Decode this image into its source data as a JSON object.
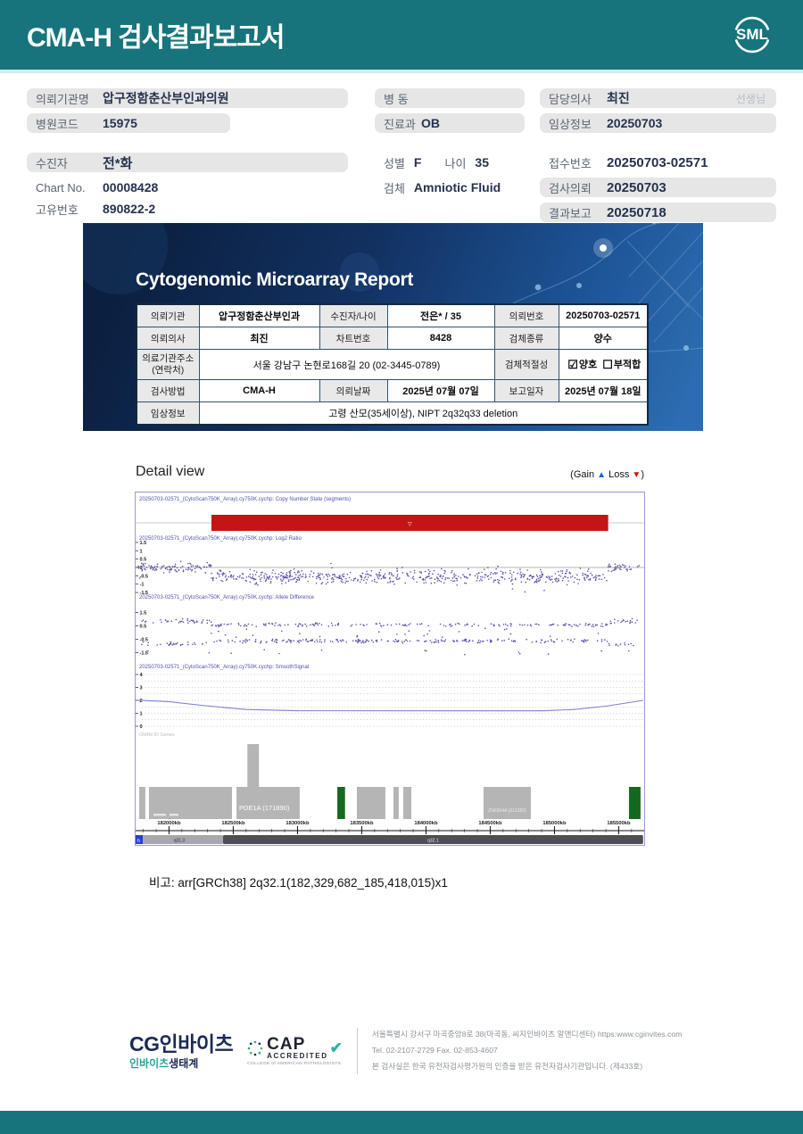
{
  "header": {
    "title": "CMA-H 검사결과보고서",
    "logo_text": "SML"
  },
  "patient": {
    "col1": [
      {
        "label": "의뢰기관명",
        "value": "압구정함춘산부인과의원"
      },
      {
        "label": "병원코드",
        "value": "15975"
      },
      {
        "label": "수진자",
        "value": "전*화"
      },
      {
        "label": "Chart No.",
        "value": "00008428"
      },
      {
        "label": "고유번호",
        "value": "890822-2"
      }
    ],
    "col2": {
      "ward_label": "병  동",
      "ward_value": "",
      "dept_label": "진료과",
      "dept_value": "OB",
      "sex_label": "성별",
      "sex_value": "F",
      "age_label": "나이",
      "age_value": "35",
      "specimen_label": "검체",
      "specimen_value": "Amniotic Fluid"
    },
    "col3": [
      {
        "label": "담당의사",
        "value": "최진",
        "suffix": "선생님"
      },
      {
        "label": "임상정보",
        "value": "20250703"
      },
      {
        "label": "접수번호",
        "value": "20250703-02571"
      },
      {
        "label": "검사의뢰",
        "value": "20250703"
      },
      {
        "label": "결과보고",
        "value": "20250718"
      }
    ]
  },
  "report_card": {
    "title": "Cytogenomic Microarray Report",
    "row1": {
      "l1": "의뢰기관",
      "v1": "압구정함춘산부인과",
      "l2": "수진자/나이",
      "v2": "전은* / 35",
      "l3": "의뢰번호",
      "v3": "20250703-02571"
    },
    "row2": {
      "l1": "의뢰의사",
      "v1": "최진",
      "l2": "차트번호",
      "v2": "8428",
      "l3": "검체종류",
      "v3": "양수"
    },
    "row3": {
      "l1a": "의료기관주소",
      "l1b": "(연락처)",
      "v1": "서울 강남구 논현로168길 20 (02-3445-0789)",
      "l3": "검체적절성",
      "checked_box": "☑",
      "good": "양호",
      "unchecked_box": "☐",
      "bad": "부적합"
    },
    "row4": {
      "l1": "검사방법",
      "v1": "CMA-H",
      "l2": "의뢰날짜",
      "v2": "2025년 07월 07일",
      "l3": "보고일자",
      "v3": "2025년 07월 18일"
    },
    "row5": {
      "l1": "임상정보",
      "v1": "고령 산모(35세이상), NIPT 2q32q33 deletion"
    }
  },
  "detail": {
    "title": "Detail view",
    "legend_open": "(Gain",
    "tri_up": "▲",
    "legend_loss": "Loss",
    "tri_down": "▼",
    "legend_close": ")"
  },
  "note": {
    "label": "비고:",
    "value": "arr[GRCh38] 2q32.1(182,329,682_185,418,015)x1"
  },
  "footer": {
    "logo_main": "CG인바이츠",
    "logo_sub1": "인바이츠",
    "logo_sub2": "생태계",
    "cap_name": "CAP",
    "cap_acc": "ACCREDITED",
    "cap_check": "✔",
    "cap_college": "COLLEGE of AMERICAN PATHOLOGISTS",
    "address": "서울특별시 강서구 마곡중앙8로 38(마곡동, 씨지인바이츠 알앤디센터)  https:www.cginvites.com",
    "tel_fax": "Tel. 02-2107-2729   Fax. 02-853-4607",
    "cert": "본 검사실은 한국 유전자검사평가원의 인증을 받은 유전자검사기관입니다. (제433호)"
  },
  "chart_data": {
    "type": "scatter",
    "title": "Detail view",
    "x_unit": "kb",
    "x_kb0": 181740,
    "x_scale": 0.144,
    "x_major_ticks": [
      182000,
      182500,
      183000,
      183500,
      184000,
      184500,
      185000,
      185500
    ],
    "x_tick_suffix": "kb",
    "x_minor_step": 100,
    "segment": {
      "type": "loss",
      "copy_number": 1,
      "start_kb": 182330,
      "end_kb": 185418,
      "marker": "▽"
    },
    "track_titles": {
      "cn": "20250703-02571_(CytoScan750K_Array).cy750K.cychp: Copy Number State (segments)",
      "log2": "20250703-02571_(CytoScan750K_Array).cy750K.cychp: Log2 Ratio",
      "allele": "20250703-02571_(CytoScan750K_Array).cy750K.cychp: Allele Difference",
      "smooth": "20250703-02571_(CytoScan750K_Array).cy750K.cychp: SmoothSignal",
      "omim": "OMIM ID Genes"
    },
    "log2_ratio": {
      "yticks": [
        1.5,
        1,
        0.5,
        0,
        -0.5,
        -1,
        -1.5
      ],
      "normal_mean": 0,
      "segment_mean": -0.55,
      "n_points": 720
    },
    "allele_difference": {
      "yticks": [
        1.5,
        0.5,
        -0.5,
        -1.5
      ],
      "bands_normal": [
        0.85,
        -0.85
      ],
      "bands_segment": [
        0.58,
        -0.63
      ],
      "n_points": 520
    },
    "smooth_signal": {
      "yticks": [
        4,
        3,
        2,
        1,
        0
      ],
      "curve_kb_value": [
        [
          181740,
          2.02
        ],
        [
          182000,
          1.9
        ],
        [
          182250,
          1.62
        ],
        [
          182600,
          1.3
        ],
        [
          183000,
          1.2
        ],
        [
          184900,
          1.19
        ],
        [
          185150,
          1.3
        ],
        [
          185400,
          1.55
        ],
        [
          185690,
          2.0
        ]
      ]
    },
    "genes": [
      {
        "start_kb": 181768,
        "end_kb": 181816,
        "row": "lower",
        "color": "gray",
        "label": ""
      },
      {
        "start_kb": 181844,
        "end_kb": 182490,
        "row": "lower",
        "color": "gray",
        "label": ""
      },
      {
        "start_kb": 182525,
        "end_kb": 183017,
        "row": "lower",
        "color": "gray",
        "label": "PDE1A (171890)"
      },
      {
        "start_kb": 182610,
        "end_kb": 182700,
        "row": "upper",
        "color": "gray",
        "label": ""
      },
      {
        "start_kb": 183310,
        "end_kb": 183370,
        "row": "lower",
        "color": "green",
        "label": ""
      },
      {
        "start_kb": 183462,
        "end_kb": 183684,
        "row": "lower",
        "color": "gray",
        "label": ""
      },
      {
        "start_kb": 183747,
        "end_kb": 183788,
        "row": "lower",
        "color": "gray",
        "label": ""
      },
      {
        "start_kb": 183823,
        "end_kb": 183886,
        "row": "lower",
        "color": "gray",
        "label": ""
      },
      {
        "start_kb": 184448,
        "end_kb": 184816,
        "row": "lower",
        "color": "gray",
        "label": "ZNF804A (612282)"
      },
      {
        "start_kb": 185580,
        "end_kb": 185670,
        "row": "lower",
        "color": "green",
        "label": ""
      }
    ],
    "ideogram": [
      {
        "band": "q31.3",
        "start_kb": 181740,
        "end_kb": 182420,
        "shade": "light"
      },
      {
        "band": "q32.1",
        "start_kb": 182420,
        "end_kb": 185690,
        "shade": "dark"
      }
    ],
    "colors": {
      "dot": "#4a3f9f",
      "loss": "#c51414",
      "gain": "#1565d8",
      "title": "#5050b4",
      "curve": "#8080d0",
      "gene_gray": "#b5b5b5",
      "gene_green": "#15691f"
    }
  }
}
